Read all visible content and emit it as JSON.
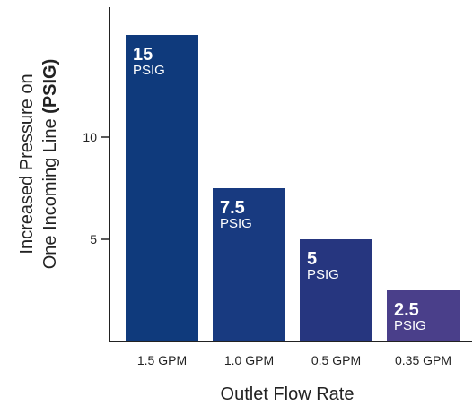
{
  "chart_data": {
    "type": "bar",
    "categories": [
      "1.5 GPM",
      "1.0 GPM",
      "0.5 GPM",
      "0.35 GPM"
    ],
    "values": [
      15,
      7.5,
      5,
      2.5
    ],
    "value_labels": [
      "15",
      "7.5",
      "5",
      "2.5"
    ],
    "value_unit": "PSIG",
    "xlabel": "Outlet Flow Rate",
    "ylabel_line1": "Increased Pressure on",
    "ylabel_line2_prefix": "One Incoming Line ",
    "ylabel_line2_bold": "(PSIG)",
    "yticks": [
      5,
      10
    ],
    "ylim": [
      0,
      16.5
    ],
    "grid": false,
    "bar_colors": [
      "#0f3a7c",
      "#183a80",
      "#26367f",
      "#4a3f8a"
    ],
    "axis_color": "#222222"
  }
}
